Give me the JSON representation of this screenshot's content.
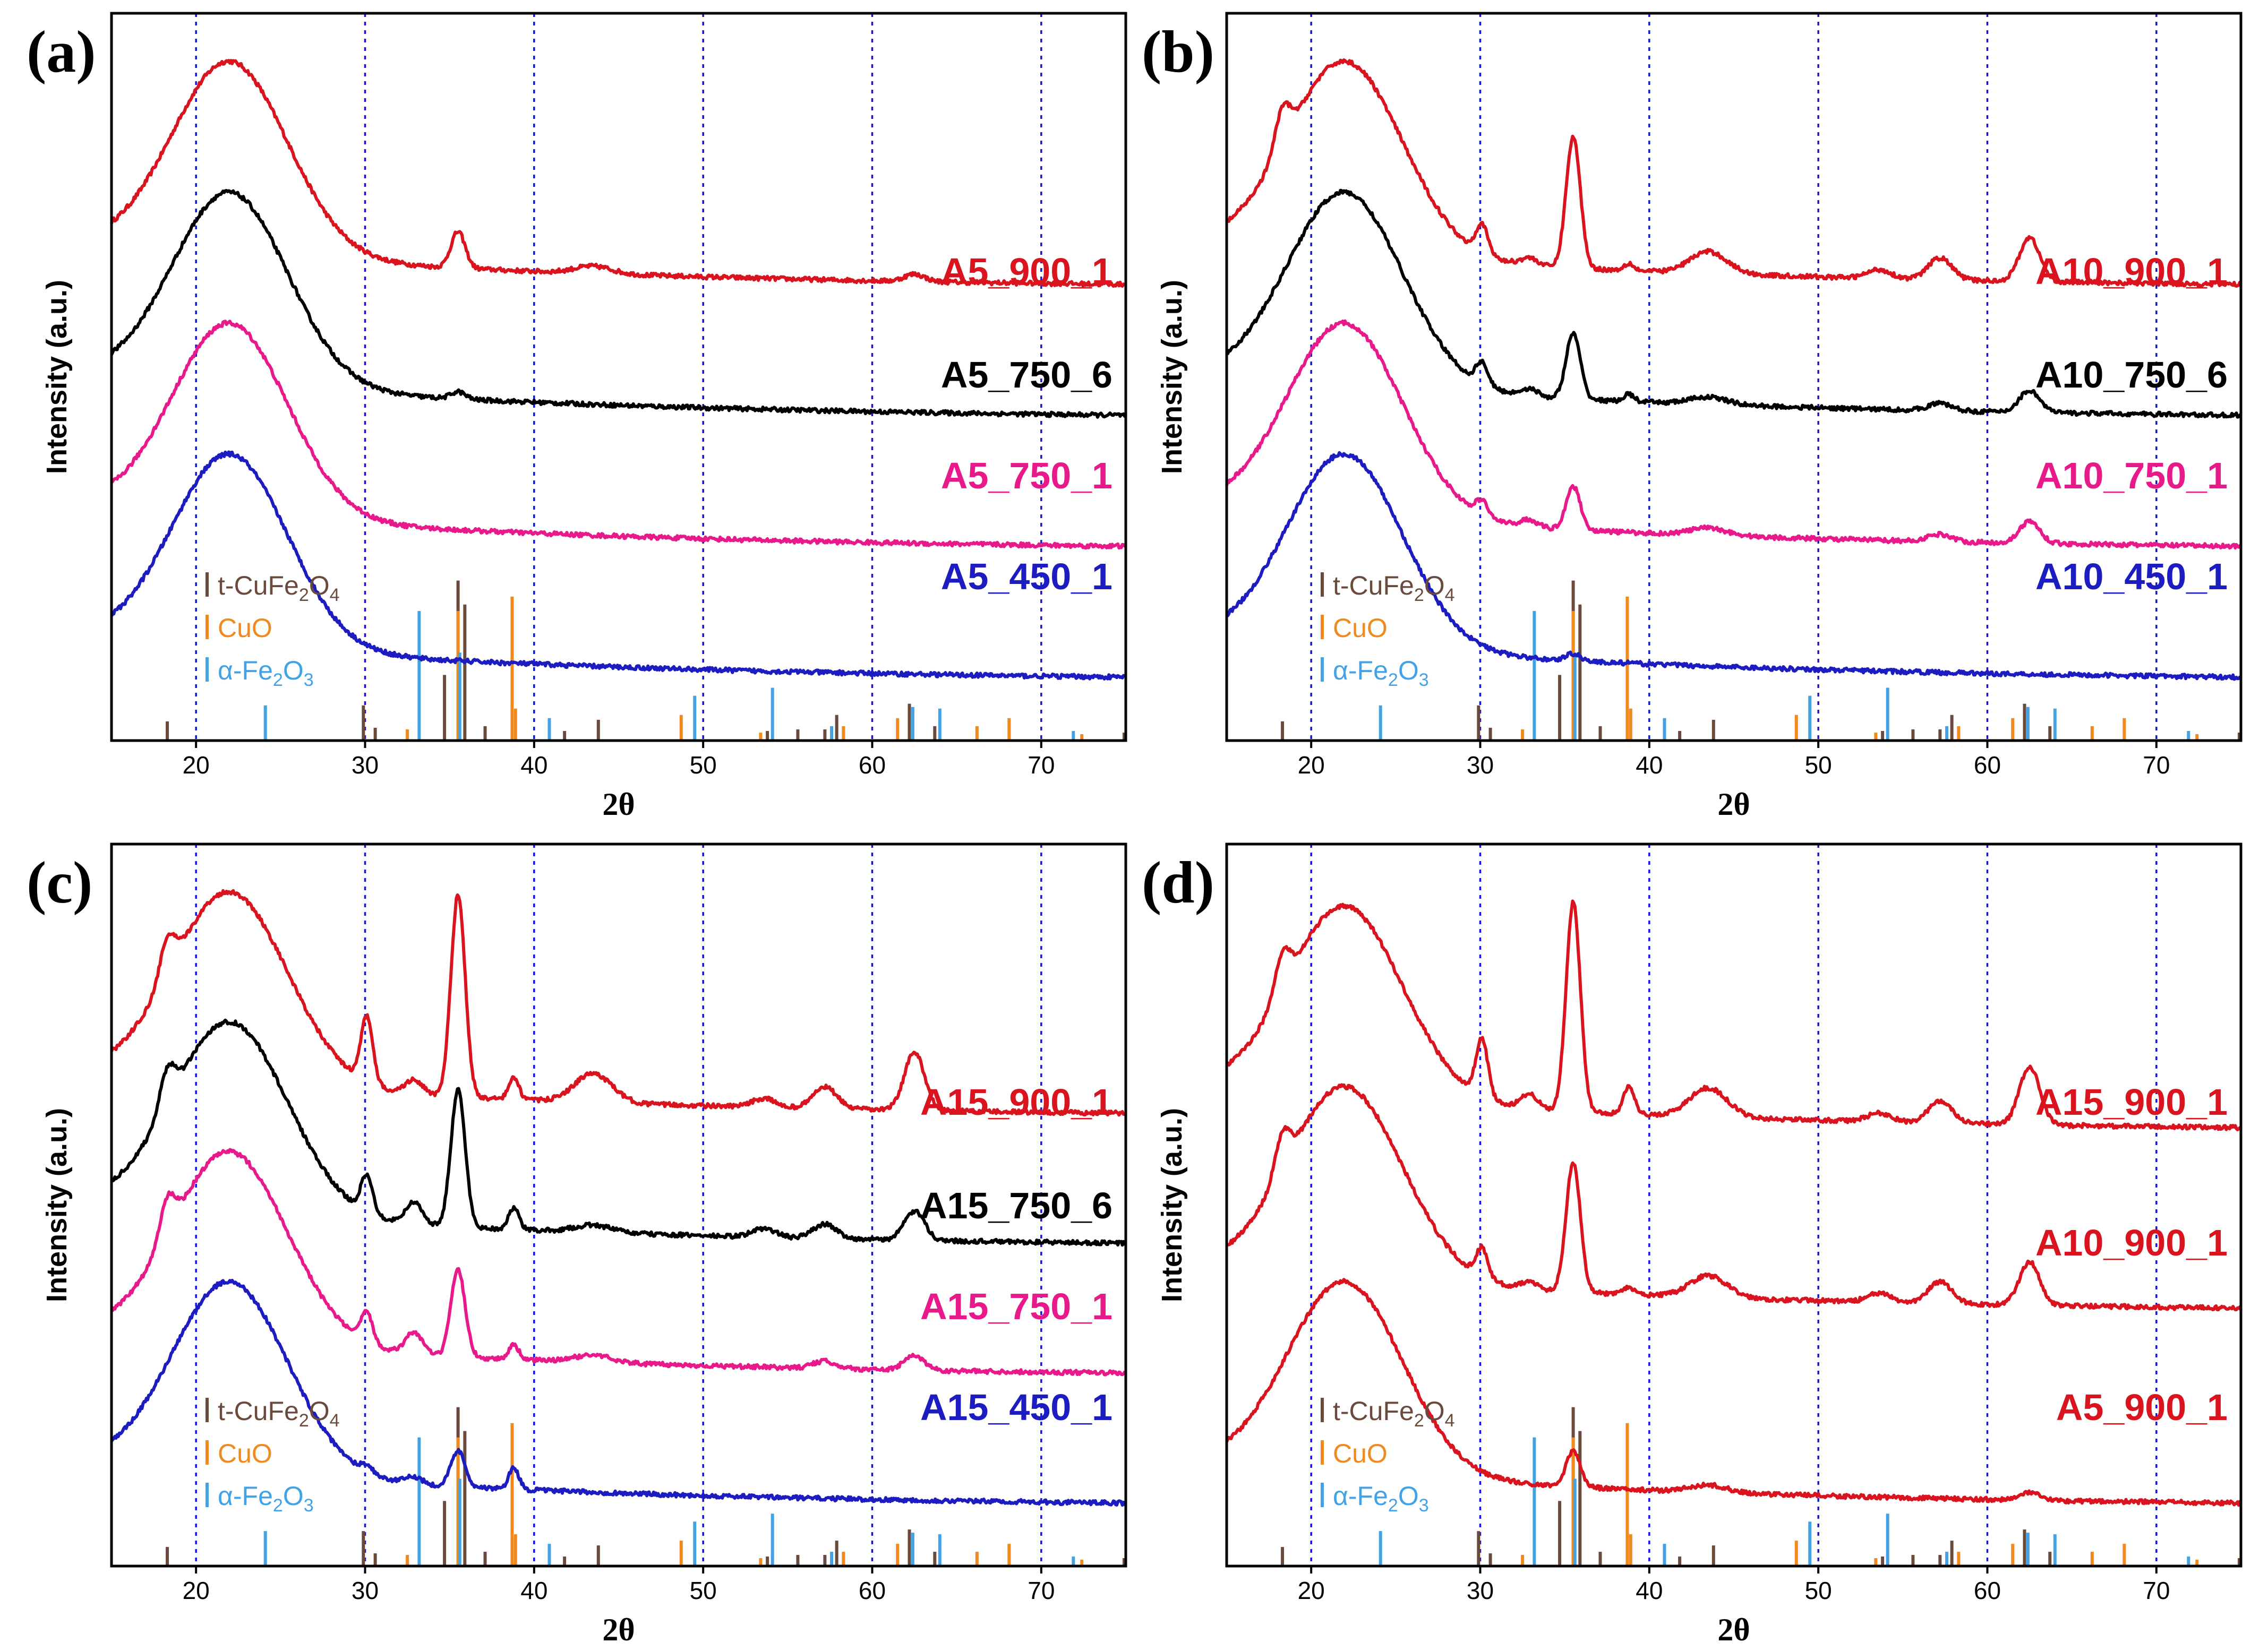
{
  "figure": {
    "panels": [
      {
        "letter": "(a)",
        "ylabel": "Intensity (a.u.)",
        "xlabel": "2θ",
        "series": [
          {
            "name": "A5_900_1",
            "color": "#d9141e",
            "peaks": {
              "p30": 0.0,
              "p33": 0.0,
              "p355": 0.05,
              "p387": 0.0,
              "p435": 0.01,
              "p57": 0.0,
              "p625": 0.01
            }
          },
          {
            "name": "A5_750_6",
            "color": "#000000",
            "peaks": {
              "p30": 0.0,
              "p33": 0.0,
              "p355": 0.01,
              "p387": 0.0,
              "p435": 0.0,
              "p57": 0.0,
              "p625": 0.0
            }
          },
          {
            "name": "A5_750_1",
            "color": "#e8198b",
            "peaks": {
              "p30": 0.0,
              "p33": 0.0,
              "p355": 0.0,
              "p387": 0.0,
              "p435": 0.0,
              "p57": 0.0,
              "p625": 0.0
            }
          },
          {
            "name": "A5_450_1",
            "color": "#1c1cc0",
            "peaks": {
              "p30": 0.0,
              "p33": 0.0,
              "p355": 0.0,
              "p387": 0.0,
              "p435": 0.0,
              "p57": 0.0,
              "p625": 0.0
            }
          }
        ]
      },
      {
        "letter": "(b)",
        "ylabel": "Intensity (a.u.)",
        "xlabel": "2θ",
        "series": [
          {
            "name": "A10_900_1",
            "color": "#d9141e",
            "peaks": {
              "p30": 0.04,
              "p33": 0.01,
              "p355": 0.18,
              "p387": 0.01,
              "p435": 0.03,
              "p57": 0.03,
              "p625": 0.06
            }
          },
          {
            "name": "A10_750_6",
            "color": "#000000",
            "peaks": {
              "p30": 0.03,
              "p33": 0.01,
              "p355": 0.09,
              "p387": 0.01,
              "p435": 0.01,
              "p57": 0.01,
              "p625": 0.03
            }
          },
          {
            "name": "A10_750_1",
            "color": "#e8198b",
            "peaks": {
              "p30": 0.02,
              "p33": 0.01,
              "p355": 0.06,
              "p387": 0.0,
              "p435": 0.01,
              "p57": 0.01,
              "p625": 0.03
            }
          },
          {
            "name": "A10_450_1",
            "color": "#1c1cc0",
            "peaks": {
              "p30": 0.0,
              "p33": 0.0,
              "p355": 0.01,
              "p387": 0.0,
              "p435": 0.0,
              "p57": 0.0,
              "p625": 0.0
            }
          }
        ]
      },
      {
        "letter": "(c)",
        "ylabel": "Intensity (a.u.)",
        "xlabel": "2θ",
        "series": [
          {
            "name": "A15_900_1",
            "color": "#d9141e",
            "peaks": {
              "p30": 0.09,
              "p33": 0.02,
              "p355": 0.28,
              "p387": 0.03,
              "p435": 0.04,
              "p57": 0.03,
              "p625": 0.08
            }
          },
          {
            "name": "A15_750_6",
            "color": "#000000",
            "peaks": {
              "p30": 0.05,
              "p33": 0.03,
              "p355": 0.19,
              "p387": 0.03,
              "p435": 0.01,
              "p57": 0.02,
              "p625": 0.04
            }
          },
          {
            "name": "A15_750_1",
            "color": "#e8198b",
            "peaks": {
              "p30": 0.04,
              "p33": 0.03,
              "p355": 0.12,
              "p387": 0.02,
              "p435": 0.01,
              "p57": 0.01,
              "p625": 0.02
            }
          },
          {
            "name": "A15_450_1",
            "color": "#1c1cc0",
            "peaks": {
              "p30": 0.01,
              "p33": 0.01,
              "p355": 0.05,
              "p387": 0.03,
              "p435": 0.0,
              "p57": 0.0,
              "p625": 0.0
            }
          }
        ]
      },
      {
        "letter": "(d)",
        "ylabel": "Intensity (a.u.)",
        "xlabel": "2θ",
        "series": [
          {
            "name": "A15_900_1",
            "color": "#d9141e",
            "peaks": {
              "p30": 0.08,
              "p33": 0.02,
              "p355": 0.29,
              "p387": 0.04,
              "p435": 0.04,
              "p57": 0.03,
              "p625": 0.08
            }
          },
          {
            "name": "A10_900_1",
            "color": "#d9141e",
            "peaks": {
              "p30": 0.04,
              "p33": 0.01,
              "p355": 0.18,
              "p387": 0.01,
              "p435": 0.03,
              "p57": 0.03,
              "p625": 0.06
            }
          },
          {
            "name": "A5_900_1",
            "color": "#d9141e",
            "peaks": {
              "p30": 0.0,
              "p33": 0.0,
              "p355": 0.05,
              "p387": 0.0,
              "p435": 0.01,
              "p57": 0.0,
              "p625": 0.01
            }
          }
        ]
      }
    ],
    "legend": [
      {
        "formula": [
          "t-CuFe",
          "2",
          "O",
          "4"
        ],
        "color": "#6b4a3e"
      },
      {
        "formula": [
          "CuO"
        ],
        "color": "#f08a1e"
      },
      {
        "formula": [
          "α-Fe",
          "2",
          "O",
          "3"
        ],
        "color": "#41a3e6"
      }
    ]
  },
  "chart_data": {
    "type": "line",
    "description_axes": {
      "xlabel": "2θ",
      "ylabel": "Intensity (a.u.)",
      "xlim": [
        15,
        75
      ],
      "xticks": [
        20,
        30,
        40,
        50,
        60,
        70
      ],
      "gridlines_x": [
        20,
        30,
        40,
        50,
        60,
        70
      ]
    },
    "common_profile": {
      "amorphous_hump_center": 22,
      "baseline_decay_to": 75
    },
    "series_baselines": {
      "offset_units": [
        0.62,
        0.44,
        0.26,
        0.08
      ],
      "hump_height": 0.28
    },
    "reference_patterns": {
      "t-CuFe2O4": [
        [
          18.3,
          0.12
        ],
        [
          29.9,
          0.22
        ],
        [
          30.6,
          0.08
        ],
        [
          34.7,
          0.41
        ],
        [
          35.5,
          1.0
        ],
        [
          35.9,
          0.85
        ],
        [
          37.1,
          0.09
        ],
        [
          41.8,
          0.06
        ],
        [
          43.8,
          0.13
        ],
        [
          53.8,
          0.06
        ],
        [
          55.6,
          0.07
        ],
        [
          57.2,
          0.07
        ],
        [
          57.9,
          0.16
        ],
        [
          62.2,
          0.23
        ],
        [
          63.7,
          0.09
        ],
        [
          75.0,
          0.05
        ]
      ],
      "CuO": [
        [
          32.5,
          0.07
        ],
        [
          35.5,
          0.81
        ],
        [
          38.7,
          0.9
        ],
        [
          38.9,
          0.2
        ],
        [
          48.7,
          0.16
        ],
        [
          53.4,
          0.05
        ],
        [
          58.3,
          0.09
        ],
        [
          61.5,
          0.14
        ],
        [
          66.2,
          0.09
        ],
        [
          68.1,
          0.14
        ],
        [
          72.4,
          0.04
        ]
      ],
      "α-Fe2O3": [
        [
          24.1,
          0.22
        ],
        [
          33.2,
          0.81
        ],
        [
          35.6,
          0.55
        ],
        [
          40.9,
          0.14
        ],
        [
          49.5,
          0.28
        ],
        [
          54.1,
          0.33
        ],
        [
          57.6,
          0.09
        ],
        [
          62.4,
          0.21
        ],
        [
          64.0,
          0.2
        ],
        [
          71.9,
          0.06
        ]
      ]
    }
  }
}
